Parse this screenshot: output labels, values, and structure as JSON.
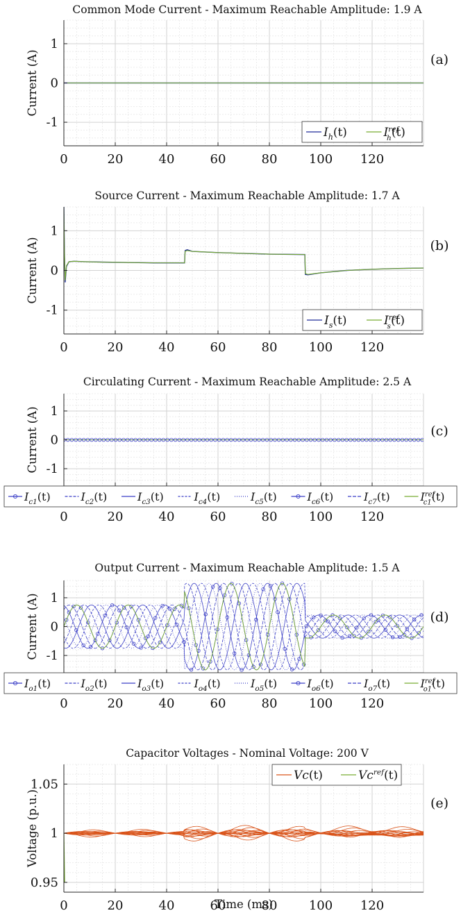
{
  "chart_data": [
    {
      "id": "a",
      "type": "line",
      "title": "Common Mode Current - Maximum Reachable Amplitude: 1.9 A",
      "panel_label": "(a)",
      "ylabel": "Current (A)",
      "xlabel": "",
      "xlim": [
        0,
        140
      ],
      "ylim": [
        -1.6,
        1.6
      ],
      "yticks": [
        -1,
        0,
        1
      ],
      "ytick_labels": [
        "-1",
        "0",
        "1"
      ],
      "xticks": [
        0,
        20,
        40,
        60,
        80,
        100,
        120
      ],
      "xtick_labels": [
        "0",
        "20",
        "40",
        "60",
        "80",
        "100",
        "120"
      ],
      "grid": true,
      "legend_position": "bottom-right",
      "legend": [
        "I_h(t)",
        "I_h^ref(t)"
      ],
      "series": [
        {
          "name": "I_h(t)",
          "color": "#1f2a99",
          "x": [
            0,
            140
          ],
          "y": [
            0,
            0
          ]
        },
        {
          "name": "I_h^ref(t)",
          "color": "#77ac30",
          "x": [
            0,
            140
          ],
          "y": [
            0,
            0
          ]
        }
      ]
    },
    {
      "id": "b",
      "type": "line",
      "title": "Source Current - Maximum Reachable Amplitude: 1.7 A",
      "panel_label": "(b)",
      "ylabel": "Current (A)",
      "xlabel": "",
      "xlim": [
        0,
        140
      ],
      "ylim": [
        -1.6,
        1.6
      ],
      "yticks": [
        -1,
        0,
        1
      ],
      "ytick_labels": [
        "-1",
        "0",
        "1"
      ],
      "xticks": [
        0,
        20,
        40,
        60,
        80,
        100,
        120
      ],
      "xtick_labels": [
        "0",
        "20",
        "40",
        "60",
        "80",
        "100",
        "120"
      ],
      "grid": true,
      "legend_position": "bottom-right",
      "legend": [
        "I_s(t)",
        "I_s^ref(t)"
      ],
      "series": [
        {
          "name": "I_s(t)",
          "color": "#1f2a99",
          "x": [
            0,
            0.2,
            0.5,
            1,
            2,
            4,
            8,
            15,
            25,
            35,
            47,
            47.2,
            48,
            50,
            60,
            70,
            80,
            93.8,
            94,
            95,
            100,
            110,
            120,
            130,
            140
          ],
          "y": [
            1.6,
            0.5,
            -0.3,
            0.1,
            0.22,
            0.23,
            0.22,
            0.21,
            0.2,
            0.19,
            0.19,
            0.5,
            0.52,
            0.48,
            0.45,
            0.43,
            0.41,
            0.4,
            -0.1,
            -0.11,
            -0.06,
            0.0,
            0.03,
            0.05,
            0.06
          ]
        },
        {
          "name": "I_s^ref(t)",
          "color": "#77ac30",
          "x": [
            0,
            0.2,
            0.5,
            1,
            2,
            4,
            8,
            15,
            25,
            35,
            47,
            47.2,
            48,
            50,
            60,
            70,
            80,
            93.8,
            94,
            95,
            100,
            110,
            120,
            130,
            140
          ],
          "y": [
            1.6,
            0.5,
            -0.25,
            0.12,
            0.22,
            0.23,
            0.22,
            0.21,
            0.2,
            0.19,
            0.19,
            0.48,
            0.5,
            0.48,
            0.45,
            0.43,
            0.41,
            0.4,
            -0.08,
            -0.1,
            -0.06,
            0.0,
            0.03,
            0.05,
            0.06
          ]
        }
      ]
    },
    {
      "id": "c",
      "type": "line",
      "title": "Circulating Current - Maximum Reachable Amplitude: 2.5 A",
      "panel_label": "(c)",
      "ylabel": "Current (A)",
      "xlabel": "",
      "xlim": [
        0,
        140
      ],
      "ylim": [
        -1.6,
        1.6
      ],
      "yticks": [
        -1,
        0,
        1
      ],
      "ytick_labels": [
        "-1",
        "0",
        "1"
      ],
      "xticks": [
        0,
        20,
        40,
        60,
        80,
        100,
        120
      ],
      "xtick_labels": [
        "0",
        "20",
        "40",
        "60",
        "80",
        "100",
        "120"
      ],
      "grid": true,
      "legend_position": "bottom",
      "legend": [
        "I_c1(t)",
        "I_c2(t)",
        "I_c3(t)",
        "I_c4(t)",
        "I_c5(t)",
        "I_c6(t)",
        "I_c7(t)",
        "I_c1^ref(t)"
      ],
      "series": [
        {
          "name": "I_c1(t)",
          "color": "#3b3fc7",
          "x": [
            0,
            140
          ],
          "y": [
            0,
            0
          ]
        },
        {
          "name": "I_c2(t)",
          "color": "#3b3fc7",
          "x": [
            0,
            140
          ],
          "y": [
            0,
            0
          ]
        },
        {
          "name": "I_c3(t)",
          "color": "#3b3fc7",
          "x": [
            0,
            140
          ],
          "y": [
            0,
            0
          ]
        },
        {
          "name": "I_c4(t)",
          "color": "#3b3fc7",
          "x": [
            0,
            140
          ],
          "y": [
            0,
            0
          ]
        },
        {
          "name": "I_c5(t)",
          "color": "#3b3fc7",
          "x": [
            0,
            140
          ],
          "y": [
            0,
            0
          ]
        },
        {
          "name": "I_c6(t)",
          "color": "#3b3fc7",
          "x": [
            0,
            140
          ],
          "y": [
            0,
            0
          ]
        },
        {
          "name": "I_c7(t)",
          "color": "#3b3fc7",
          "x": [
            0,
            140
          ],
          "y": [
            0,
            0
          ]
        },
        {
          "name": "I_c1^ref(t)",
          "color": "#77ac30",
          "x": [
            0,
            140
          ],
          "y": [
            0,
            0
          ]
        }
      ]
    },
    {
      "id": "d",
      "type": "line",
      "title": "Output Current - Maximum Reachable Amplitude: 1.5 A",
      "panel_label": "(d)",
      "ylabel": "Current (A)",
      "xlabel": "",
      "xlim": [
        0,
        140
      ],
      "ylim": [
        -1.6,
        1.6
      ],
      "yticks": [
        -1,
        0,
        1
      ],
      "ytick_labels": [
        "-1",
        "0",
        "1"
      ],
      "xticks": [
        0,
        20,
        40,
        60,
        80,
        100,
        120
      ],
      "xtick_labels": [
        "0",
        "20",
        "40",
        "60",
        "80",
        "100",
        "120"
      ],
      "grid": true,
      "legend_position": "bottom",
      "legend": [
        "I_o1(t)",
        "I_o2(t)",
        "I_o3(t)",
        "I_o4(t)",
        "I_o5(t)",
        "I_o6(t)",
        "I_o7(t)",
        "I_o1^ref(t)"
      ],
      "waveform": {
        "phases": 7,
        "segments": [
          {
            "t_start": 0,
            "t_end": 47,
            "amplitude": 0.75,
            "frequency_hz": 50
          },
          {
            "t_start": 47,
            "t_end": 94,
            "amplitude": 1.5,
            "frequency_hz": 50
          },
          {
            "t_start": 94,
            "t_end": 140,
            "amplitude": 0.4,
            "frequency_hz": 50
          }
        ]
      }
    },
    {
      "id": "e",
      "type": "line",
      "title": "Capacitor Voltages - Nominal Voltage: 200 V",
      "panel_label": "(e)",
      "ylabel": "Voltage (p.u.)",
      "xlabel": "Time (ms)",
      "xlim": [
        0,
        140
      ],
      "ylim": [
        0.94,
        1.07
      ],
      "yticks": [
        0.95,
        1,
        1.05
      ],
      "ytick_labels": [
        "0.95",
        "1",
        "1.05"
      ],
      "xticks": [
        0,
        20,
        40,
        60,
        80,
        100,
        120
      ],
      "xtick_labels": [
        "0",
        "20",
        "40",
        "60",
        "80",
        "100",
        "120"
      ],
      "grid": true,
      "legend_position": "top-right",
      "legend": [
        "Vc(t)",
        "Vc^ref(t)"
      ],
      "ripple": {
        "lines": 14,
        "node_period_ms": 20,
        "segments": [
          {
            "t_start": 0,
            "t_end": 47,
            "deviation_pu": 0.004
          },
          {
            "t_start": 47,
            "t_end": 94,
            "deviation_pu": 0.008
          },
          {
            "t_start": 94,
            "t_end": 140,
            "deviation_pu": 0.006
          }
        ]
      }
    }
  ],
  "colors": {
    "blue": "#1f2a99",
    "phase_blue": "#3b3fc7",
    "green": "#77ac30",
    "orange": "#d95319",
    "grid": "#dcdcdc",
    "axis": "#262626"
  }
}
